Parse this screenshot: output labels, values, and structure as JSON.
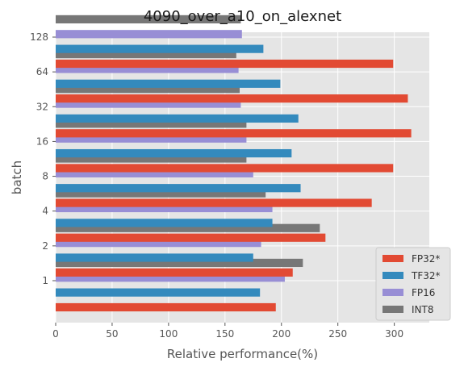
{
  "chart_data": {
    "type": "bar",
    "orientation": "horizontal",
    "title": "4090_over_a10_on_alexnet",
    "xlabel": "Relative performance(%)",
    "ylabel": "batch",
    "categories": [
      "1",
      "2",
      "4",
      "8",
      "16",
      "32",
      "64",
      "128"
    ],
    "series": [
      {
        "name": "FP32*",
        "color": "#E24A33",
        "values": [
          195,
          210,
          239,
          280,
          299,
          315,
          312,
          299
        ]
      },
      {
        "name": "TF32*",
        "color": "#348ABD",
        "values": [
          181,
          175,
          192,
          217,
          209,
          215,
          199,
          184
        ]
      },
      {
        "name": "FP16",
        "color": "#988ED5",
        "values": [
          203,
          182,
          192,
          175,
          169,
          164,
          162,
          165
        ]
      },
      {
        "name": "INT8",
        "color": "#777777",
        "values": [
          219,
          234,
          186,
          169,
          169,
          163,
          160,
          164
        ]
      }
    ],
    "xlim": [
      0,
      331
    ],
    "xticks": [
      0,
      50,
      100,
      150,
      200,
      250,
      300
    ],
    "grid": true,
    "legend_position": "lower-right",
    "style": "ggplot"
  }
}
